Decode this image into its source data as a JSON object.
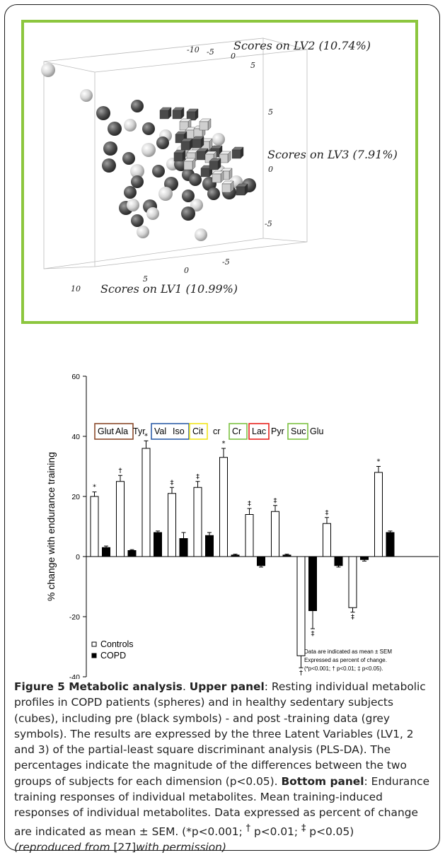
{
  "chart_data": [
    {
      "type": "scatter",
      "axes": [
        {
          "label": "Scores on LV1 (10.99%)",
          "ticks": [
            "10",
            "5",
            "0",
            "-5"
          ]
        },
        {
          "label": "Scores on LV2 (10.74%)",
          "ticks": [
            "-10",
            "-5",
            "0",
            "5"
          ]
        },
        {
          "label": "Scores on LV3 (7.91%)",
          "ticks": [
            "5",
            "0",
            "-5"
          ]
        }
      ],
      "series": []
    },
    {
      "type": "bar",
      "ylabel": "% change with endurance training",
      "ylim": [
        -40,
        60
      ],
      "yticks": [
        "-40",
        "-20",
        "0",
        "20",
        "40",
        "60"
      ],
      "categories": [
        "Glut",
        "Ala",
        "Tyr",
        "Val",
        "Iso",
        "Cit",
        "cr",
        "Cr",
        "Lac",
        "Pyr",
        "Suc",
        "Glu"
      ],
      "category_boxes": [
        {
          "items": [
            "Glut",
            "Ala"
          ],
          "color": "#8b4a2b"
        },
        {
          "items": [
            "Val",
            "Iso"
          ],
          "color": "#2f5fa8"
        },
        {
          "items": [
            "Cit"
          ],
          "color": "#f2e41c"
        },
        {
          "items": [
            "Cr"
          ],
          "color": "#7dc242"
        },
        {
          "items": [
            "Lac"
          ],
          "color": "#e8231e"
        },
        {
          "items": [
            "Suc"
          ],
          "color": "#7dc242"
        }
      ],
      "series": [
        {
          "name": "Controls",
          "values": [
            20,
            25,
            36,
            21,
            23,
            33,
            14,
            15,
            -33,
            11,
            -17,
            28
          ],
          "errors": [
            1.5,
            2,
            2.5,
            2,
            2,
            3,
            2,
            2,
            4,
            2,
            1.5,
            2
          ],
          "significance": [
            "*",
            "†",
            "*",
            "‡",
            "‡",
            "*",
            "‡",
            "‡",
            "†",
            "‡",
            "‡",
            "*"
          ]
        },
        {
          "name": "COPD",
          "values": [
            3,
            2,
            8,
            6,
            7,
            0.5,
            -3,
            0.5,
            -18,
            -3,
            -1,
            8
          ],
          "errors": [
            0.5,
            0.3,
            0.5,
            2,
            1,
            0.3,
            0.5,
            0.3,
            6,
            0.5,
            0.5,
            0.5
          ],
          "significance": [
            "",
            "",
            "",
            "",
            "",
            "",
            "",
            "",
            "‡",
            "",
            "",
            ""
          ]
        }
      ],
      "legend": [
        "Controls",
        "COPD"
      ],
      "legend_position": "bottom-left",
      "note": [
        "Data are indicated as mean ± SEM",
        "Expressed as percent of change.",
        "(*p<0.001; † p<0.01; ‡ p<0.05)."
      ]
    }
  ],
  "caption": {
    "title": "Figure 5 Metabolic analysis",
    "upper_label": "Upper panel",
    "upper_text": ": Resting individual metabolic profiles in COPD patients (spheres) and in healthy sedentary subjects (cubes), including pre (black symbols) - and post -training data (grey symbols). The results are expressed by the three Latent Variables (LV1, 2 and 3) of the partial-least square discriminant analysis (PLS-DA). The percentages indicate the magnitude of the differences between the two groups of subjects for each dimension (p<0.05). ",
    "bottom_label": "Bottom panel",
    "bottom_text": ": Endurance training responses of individual metabolites. Mean training-induced responses of individual metabolites. Data expressed as percent of change are indicated as mean ± SEM. (*p<0.001; ",
    "dagger": "†",
    "mid1": " p<0.01; ",
    "ddagger": "‡",
    "end": " p<0.05)",
    "reproduced_prefix": "(reproduced from ",
    "reference": "[27]",
    "reproduced_suffix": "with permission)"
  },
  "colors": {
    "frame_border": "#8cc63e",
    "sphere_dark": "#555555",
    "sphere_light": "#dddddd",
    "cube_dark": "#4a4a4a",
    "cube_light": "#c8c8c8"
  }
}
